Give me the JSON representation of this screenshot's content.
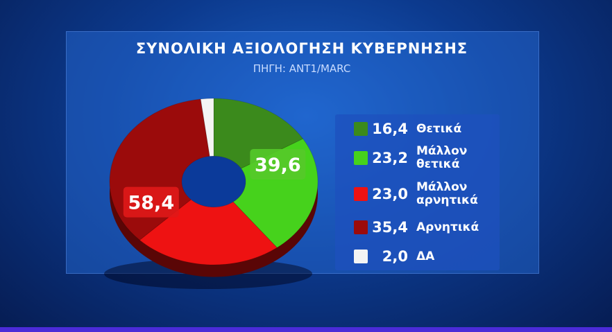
{
  "chart_data": {
    "type": "pie",
    "title": "ΣΥΝΟΛΙΚΗ ΑΞΙΟΛΟΓΗΣΗ ΚΥΒΕΡΝΗΣΗΣ",
    "subtitle": "ΠΗΓΗ: ANT1/MARC",
    "categories": [
      "Θετικά",
      "Μάλλον θετικά",
      "Μάλλον αρνητικά",
      "Αρνητικά",
      "ΔΑ"
    ],
    "values": [
      16.4,
      23.2,
      23.0,
      35.4,
      2.0
    ],
    "value_labels": [
      "16,4",
      "23,2",
      "23,0",
      "35,4",
      "2,0"
    ],
    "colors": [
      "#3b8a1c",
      "#46d21c",
      "#ee1212",
      "#9b0b0b",
      "#f4f4f4"
    ],
    "totals": [
      {
        "value": 39.6,
        "label": "39,6",
        "color": "#55c92a"
      },
      {
        "value": 58.4,
        "label": "58,4",
        "color": "#e01818"
      }
    ]
  }
}
